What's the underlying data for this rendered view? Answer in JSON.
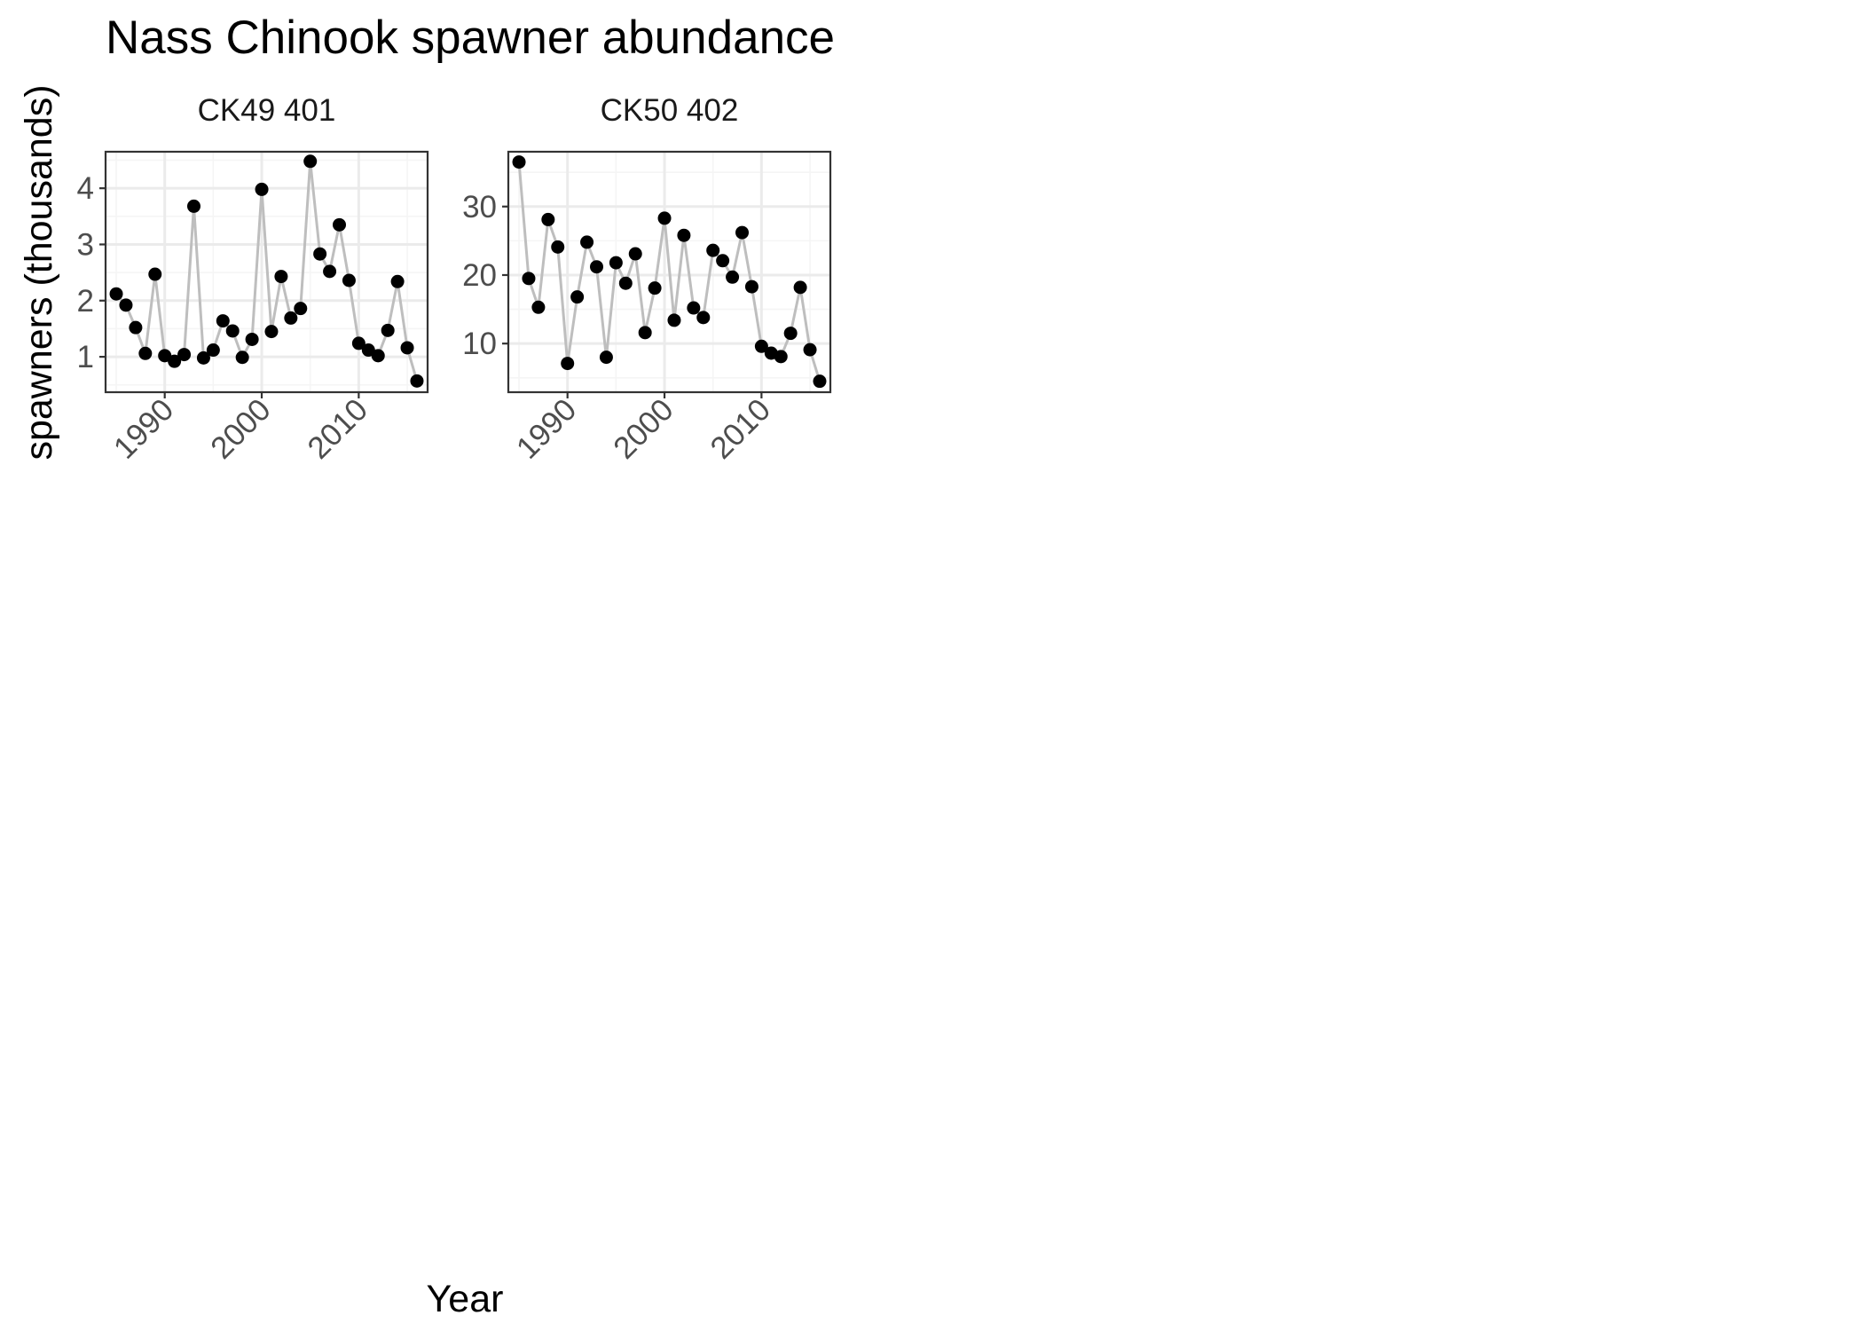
{
  "title": "Nass Chinook spawner abundance",
  "xlabel": "Year",
  "ylabel": "spawners (thousands)",
  "colors": {
    "line": "#BEBEBE",
    "point": "#000000",
    "grid_major": "#EBEBEB",
    "grid_minor": "#F5F5F5",
    "panel_border": "#333333",
    "tick": "#333333"
  },
  "chart_data": [
    {
      "type": "line",
      "panel_title": "CK49 401",
      "x_label": "Year",
      "y_label": "spawners (thousands)",
      "xlim": [
        1983.9,
        2017.1
      ],
      "ylim": [
        0.37,
        4.65
      ],
      "x_ticks": [
        1990,
        2000,
        2010
      ],
      "x_tick_labels": [
        "1990",
        "2000",
        "2010"
      ],
      "y_ticks": [
        1,
        2,
        3,
        4
      ],
      "y_tick_labels": [
        "1",
        "2",
        "3",
        "4"
      ],
      "grid": true,
      "series": [
        {
          "x": [
            1985,
            1986,
            1987,
            1988,
            1989,
            1990,
            1991,
            1992,
            1993,
            1994,
            1995,
            1996,
            1997,
            1998,
            1999,
            2000,
            2001,
            2002,
            2003,
            2004,
            2005,
            2006,
            2007,
            2008,
            2009,
            2010,
            2011,
            2012,
            2013,
            2014,
            2015,
            2016
          ],
          "y": [
            2.12,
            1.92,
            1.52,
            1.06,
            2.47,
            1.02,
            0.92,
            1.04,
            3.68,
            0.98,
            1.12,
            1.64,
            1.46,
            0.99,
            1.31,
            3.98,
            1.45,
            2.43,
            1.69,
            1.86,
            4.48,
            2.83,
            2.52,
            3.35,
            2.36,
            1.24,
            1.12,
            1.02,
            1.47,
            2.34,
            1.16,
            0.57
          ]
        }
      ]
    },
    {
      "type": "line",
      "panel_title": "CK50 402",
      "x_label": "Year",
      "y_label": "spawners (thousands)",
      "xlim": [
        1983.9,
        2017.1
      ],
      "ylim": [
        2.9,
        38.0
      ],
      "x_ticks": [
        1990,
        2000,
        2010
      ],
      "x_tick_labels": [
        "1990",
        "2000",
        "2010"
      ],
      "y_ticks": [
        10,
        20,
        30
      ],
      "y_tick_labels": [
        "10",
        "20",
        "30"
      ],
      "grid": true,
      "series": [
        {
          "x": [
            1985,
            1986,
            1987,
            1988,
            1989,
            1990,
            1991,
            1992,
            1993,
            1994,
            1995,
            1996,
            1997,
            1998,
            1999,
            2000,
            2001,
            2002,
            2003,
            2004,
            2005,
            2006,
            2007,
            2008,
            2009,
            2010,
            2011,
            2012,
            2013,
            2014,
            2015,
            2016
          ],
          "y": [
            36.5,
            19.5,
            15.3,
            28.1,
            24.1,
            7.1,
            16.8,
            24.8,
            21.2,
            8.0,
            21.8,
            18.8,
            23.1,
            11.6,
            18.1,
            28.3,
            13.4,
            25.8,
            15.2,
            13.8,
            23.6,
            22.1,
            19.7,
            26.2,
            18.3,
            9.6,
            8.6,
            8.1,
            11.5,
            18.2,
            9.1,
            4.5
          ]
        }
      ]
    }
  ]
}
